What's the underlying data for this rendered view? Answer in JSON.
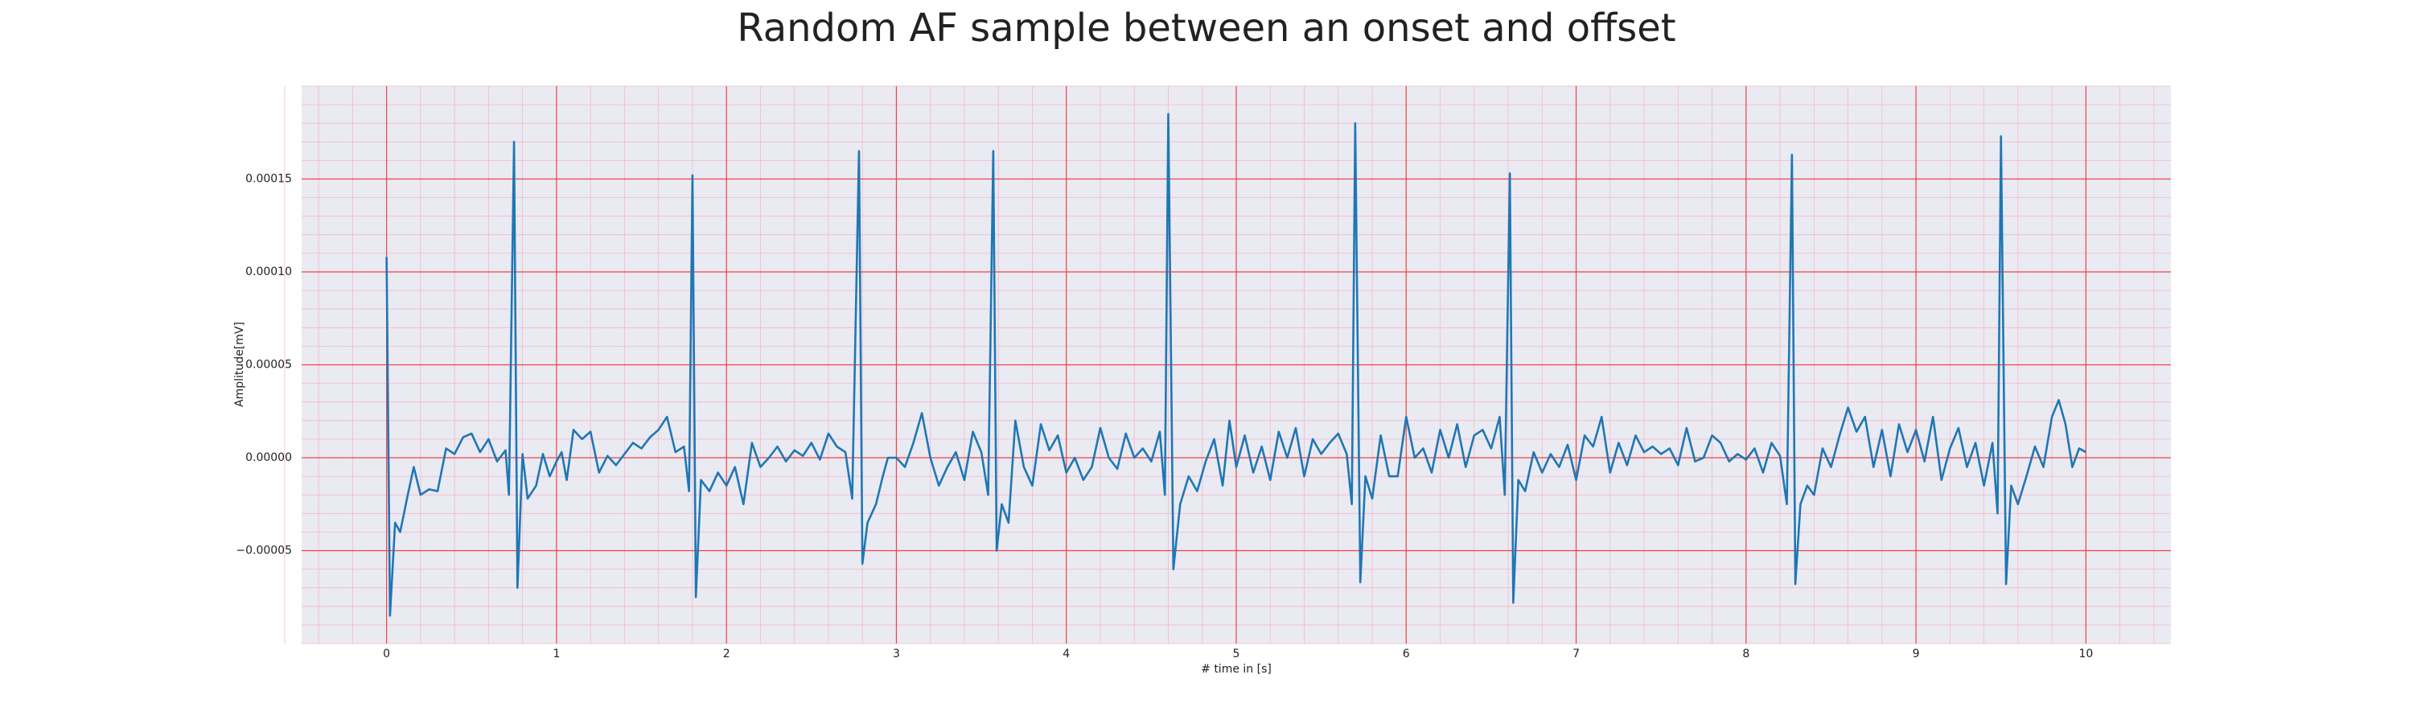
{
  "chart_data": {
    "type": "line",
    "title": "Random AF sample between an onset and offset",
    "x_label": "# time in [s]",
    "y_label": "Amplitude[mV]",
    "color": "#1f77b4",
    "grid": true,
    "minor_grid": true,
    "xlim": [
      -0.5,
      10.5
    ],
    "ylim": [
      -0.0001,
      0.0002
    ],
    "xticks": [
      0,
      1,
      2,
      3,
      4,
      5,
      6,
      7,
      8,
      9,
      10
    ],
    "yticks": [
      {
        "value": -5e-05,
        "label": "−0.00005"
      },
      {
        "value": 0,
        "label": "0.00000"
      },
      {
        "value": 5e-05,
        "label": "0.00005"
      },
      {
        "value": 0.0001,
        "label": "0.00010"
      },
      {
        "value": 0.00015,
        "label": "0.00015"
      }
    ],
    "x": [
      0.0,
      0.02,
      0.05,
      0.08,
      0.12,
      0.16,
      0.2,
      0.25,
      0.3,
      0.35,
      0.4,
      0.45,
      0.5,
      0.55,
      0.6,
      0.65,
      0.7,
      0.72,
      0.75,
      0.77,
      0.8,
      0.83,
      0.88,
      0.92,
      0.96,
      1.0,
      1.03,
      1.06,
      1.1,
      1.15,
      1.2,
      1.25,
      1.3,
      1.35,
      1.4,
      1.45,
      1.5,
      1.55,
      1.6,
      1.65,
      1.7,
      1.75,
      1.78,
      1.8,
      1.82,
      1.85,
      1.9,
      1.95,
      2.0,
      2.05,
      2.1,
      2.15,
      2.2,
      2.25,
      2.3,
      2.35,
      2.4,
      2.45,
      2.5,
      2.55,
      2.6,
      2.65,
      2.7,
      2.74,
      2.78,
      2.8,
      2.83,
      2.88,
      2.92,
      2.95,
      3.0,
      3.05,
      3.1,
      3.15,
      3.2,
      3.25,
      3.3,
      3.35,
      3.4,
      3.45,
      3.5,
      3.54,
      3.57,
      3.59,
      3.62,
      3.66,
      3.7,
      3.75,
      3.8,
      3.85,
      3.9,
      3.95,
      4.0,
      4.05,
      4.1,
      4.15,
      4.2,
      4.25,
      4.3,
      4.35,
      4.4,
      4.45,
      4.5,
      4.55,
      4.58,
      4.6,
      4.63,
      4.67,
      4.72,
      4.77,
      4.82,
      4.87,
      4.92,
      4.96,
      5.0,
      5.05,
      5.1,
      5.15,
      5.2,
      5.25,
      5.3,
      5.35,
      5.4,
      5.45,
      5.5,
      5.55,
      5.6,
      5.65,
      5.68,
      5.7,
      5.73,
      5.76,
      5.8,
      5.85,
      5.9,
      5.95,
      6.0,
      6.05,
      6.1,
      6.15,
      6.2,
      6.25,
      6.3,
      6.35,
      6.4,
      6.45,
      6.5,
      6.55,
      6.58,
      6.61,
      6.63,
      6.66,
      6.7,
      6.75,
      6.8,
      6.85,
      6.9,
      6.95,
      7.0,
      7.05,
      7.1,
      7.15,
      7.2,
      7.25,
      7.3,
      7.35,
      7.4,
      7.45,
      7.5,
      7.55,
      7.6,
      7.65,
      7.7,
      7.75,
      7.8,
      7.85,
      7.9,
      7.95,
      8.0,
      8.05,
      8.1,
      8.15,
      8.2,
      8.24,
      8.27,
      8.29,
      8.32,
      8.36,
      8.4,
      8.45,
      8.5,
      8.55,
      8.6,
      8.65,
      8.7,
      8.75,
      8.8,
      8.85,
      8.9,
      8.95,
      9.0,
      9.05,
      9.1,
      9.15,
      9.2,
      9.25,
      9.3,
      9.35,
      9.4,
      9.45,
      9.48,
      9.5,
      9.53,
      9.56,
      9.6,
      9.65,
      9.7,
      9.75,
      9.8,
      9.84,
      9.88,
      9.92,
      9.96,
      10.0
    ],
    "values": [
      0.000108,
      -8.5e-05,
      -3.5e-05,
      -4e-05,
      -2.2e-05,
      -5e-06,
      -2e-05,
      -1.7e-05,
      -1.8e-05,
      5e-06,
      2e-06,
      1.1e-05,
      1.3e-05,
      3e-06,
      1e-05,
      -2e-06,
      4e-06,
      -2e-05,
      0.00017,
      -7e-05,
      2e-06,
      -2.2e-05,
      -1.5e-05,
      2e-06,
      -1e-05,
      -2e-06,
      3e-06,
      -1.2e-05,
      1.5e-05,
      1e-05,
      1.4e-05,
      -8e-06,
      1e-06,
      -4e-06,
      2e-06,
      8e-06,
      5e-06,
      1.1e-05,
      1.5e-05,
      2.2e-05,
      3e-06,
      6e-06,
      -1.8e-05,
      0.000152,
      -7.5e-05,
      -1.2e-05,
      -1.8e-05,
      -8e-06,
      -1.5e-05,
      -5e-06,
      -2.5e-05,
      8e-06,
      -5e-06,
      0.0,
      6e-06,
      -2e-06,
      4e-06,
      1e-06,
      8e-06,
      -1e-06,
      1.3e-05,
      6e-06,
      3e-06,
      -2.2e-05,
      0.000165,
      -5.7e-05,
      -3.5e-05,
      -2.5e-05,
      -1e-05,
      0.0,
      0.0,
      -5e-06,
      8e-06,
      2.4e-05,
      0.0,
      -1.5e-05,
      -5e-06,
      3e-06,
      -1.2e-05,
      1.4e-05,
      3e-06,
      -2e-05,
      0.000165,
      -5e-05,
      -2.5e-05,
      -3.5e-05,
      2e-05,
      -5e-06,
      -1.5e-05,
      1.8e-05,
      4e-06,
      1.2e-05,
      -8e-06,
      0.0,
      -1.2e-05,
      -5e-06,
      1.6e-05,
      0.0,
      -6e-06,
      1.3e-05,
      0.0,
      5e-06,
      -2e-06,
      1.4e-05,
      -2e-05,
      0.000185,
      -6e-05,
      -2.5e-05,
      -1e-05,
      -1.8e-05,
      -2e-06,
      1e-05,
      -1.5e-05,
      2e-05,
      -5e-06,
      1.2e-05,
      -8e-06,
      6e-06,
      -1.2e-05,
      1.4e-05,
      0.0,
      1.6e-05,
      -1e-05,
      1e-05,
      2e-06,
      8e-06,
      1.3e-05,
      2e-06,
      -2.5e-05,
      0.00018,
      -6.7e-05,
      -1e-05,
      -2.2e-05,
      1.2e-05,
      -1e-05,
      -1e-05,
      2.2e-05,
      0.0,
      5e-06,
      -8e-06,
      1.5e-05,
      0.0,
      1.8e-05,
      -5e-06,
      1.2e-05,
      1.5e-05,
      5e-06,
      2.2e-05,
      -2e-05,
      0.000153,
      -7.8e-05,
      -1.2e-05,
      -1.8e-05,
      3e-06,
      -8e-06,
      2e-06,
      -5e-06,
      7e-06,
      -1.2e-05,
      1.2e-05,
      6e-06,
      2.2e-05,
      -8e-06,
      8e-06,
      -4e-06,
      1.2e-05,
      3e-06,
      6e-06,
      2e-06,
      5e-06,
      -4e-06,
      1.6e-05,
      -2e-06,
      0.0,
      1.2e-05,
      8e-06,
      -2e-06,
      2e-06,
      -1e-06,
      5e-06,
      -8e-06,
      8e-06,
      1e-06,
      -2.5e-05,
      0.000163,
      -6.8e-05,
      -2.5e-05,
      -1.5e-05,
      -2e-05,
      5e-06,
      -5e-06,
      1.2e-05,
      2.7e-05,
      1.4e-05,
      2.2e-05,
      -5e-06,
      1.5e-05,
      -1e-05,
      1.8e-05,
      3e-06,
      1.5e-05,
      -2e-06,
      2.2e-05,
      -1.2e-05,
      5e-06,
      1.6e-05,
      -5e-06,
      8e-06,
      -1.5e-05,
      8e-06,
      -3e-05,
      0.000173,
      -6.8e-05,
      -1.5e-05,
      -2.5e-05,
      -1e-05,
      6e-06,
      -5e-06,
      2.2e-05,
      3.1e-05,
      1.8e-05,
      -5e-06,
      5e-06,
      3e-06
    ]
  }
}
